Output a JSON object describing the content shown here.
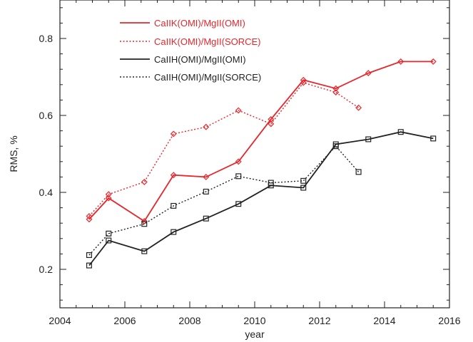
{
  "chart_data": {
    "type": "line",
    "xlabel": "year",
    "ylabel": "RMS, %",
    "xlim": [
      2004,
      2016
    ],
    "ylim": [
      0.1,
      0.9
    ],
    "xticks": [
      2004,
      2006,
      2008,
      2010,
      2012,
      2014,
      2016
    ],
    "yticks": [
      0.2,
      0.4,
      0.6,
      0.8
    ],
    "xtick_labels": [
      "2004",
      "2006",
      "2008",
      "2010",
      "2012",
      "2014",
      "2016"
    ],
    "ytick_labels": [
      "0.2",
      "0.4",
      "0.6",
      "0.8"
    ],
    "grid": false,
    "legend_position": "top-left",
    "series": [
      {
        "name": "CaIIK(OMI)/MgII(OMI)",
        "color": "#e8252b",
        "line_style": "solid",
        "marker": "diamond",
        "x": [
          2004.9,
          2005.5,
          2006.6,
          2007.5,
          2008.5,
          2009.5,
          2010.5,
          2011.5,
          2012.5,
          2013.5,
          2014.5,
          2015.5
        ],
        "y": [
          0.33,
          0.385,
          0.325,
          0.445,
          0.44,
          0.48,
          0.59,
          0.692,
          0.67,
          0.71,
          0.74,
          0.74
        ]
      },
      {
        "name": "CaIIK(OMI)/MgII(SORCE)",
        "color": "#e8252b",
        "line_style": "dotted",
        "marker": "diamond",
        "x": [
          2004.9,
          2005.5,
          2006.6,
          2007.5,
          2008.5,
          2009.5,
          2010.5,
          2011.5,
          2012.5,
          2013.2
        ],
        "y": [
          0.338,
          0.395,
          0.427,
          0.552,
          0.57,
          0.613,
          0.578,
          0.685,
          0.66,
          0.62
        ]
      },
      {
        "name": "CaIIH(OMI)/MgII(OMI)",
        "color": "#222222",
        "line_style": "solid",
        "marker": "square",
        "x": [
          2004.9,
          2005.5,
          2006.6,
          2007.5,
          2008.5,
          2009.5,
          2010.5,
          2011.5,
          2012.5,
          2013.5,
          2014.5,
          2015.5
        ],
        "y": [
          0.21,
          0.275,
          0.247,
          0.297,
          0.332,
          0.37,
          0.418,
          0.412,
          0.525,
          0.538,
          0.557,
          0.54
        ]
      },
      {
        "name": "CaIIH(OMI)/MgII(SORCE)",
        "color": "#222222",
        "line_style": "dotted",
        "marker": "square",
        "x": [
          2004.9,
          2005.5,
          2006.6,
          2007.5,
          2008.5,
          2009.5,
          2010.5,
          2011.5,
          2012.5,
          2013.2
        ],
        "y": [
          0.237,
          0.293,
          0.318,
          0.365,
          0.402,
          0.442,
          0.425,
          0.43,
          0.52,
          0.453
        ]
      }
    ]
  }
}
